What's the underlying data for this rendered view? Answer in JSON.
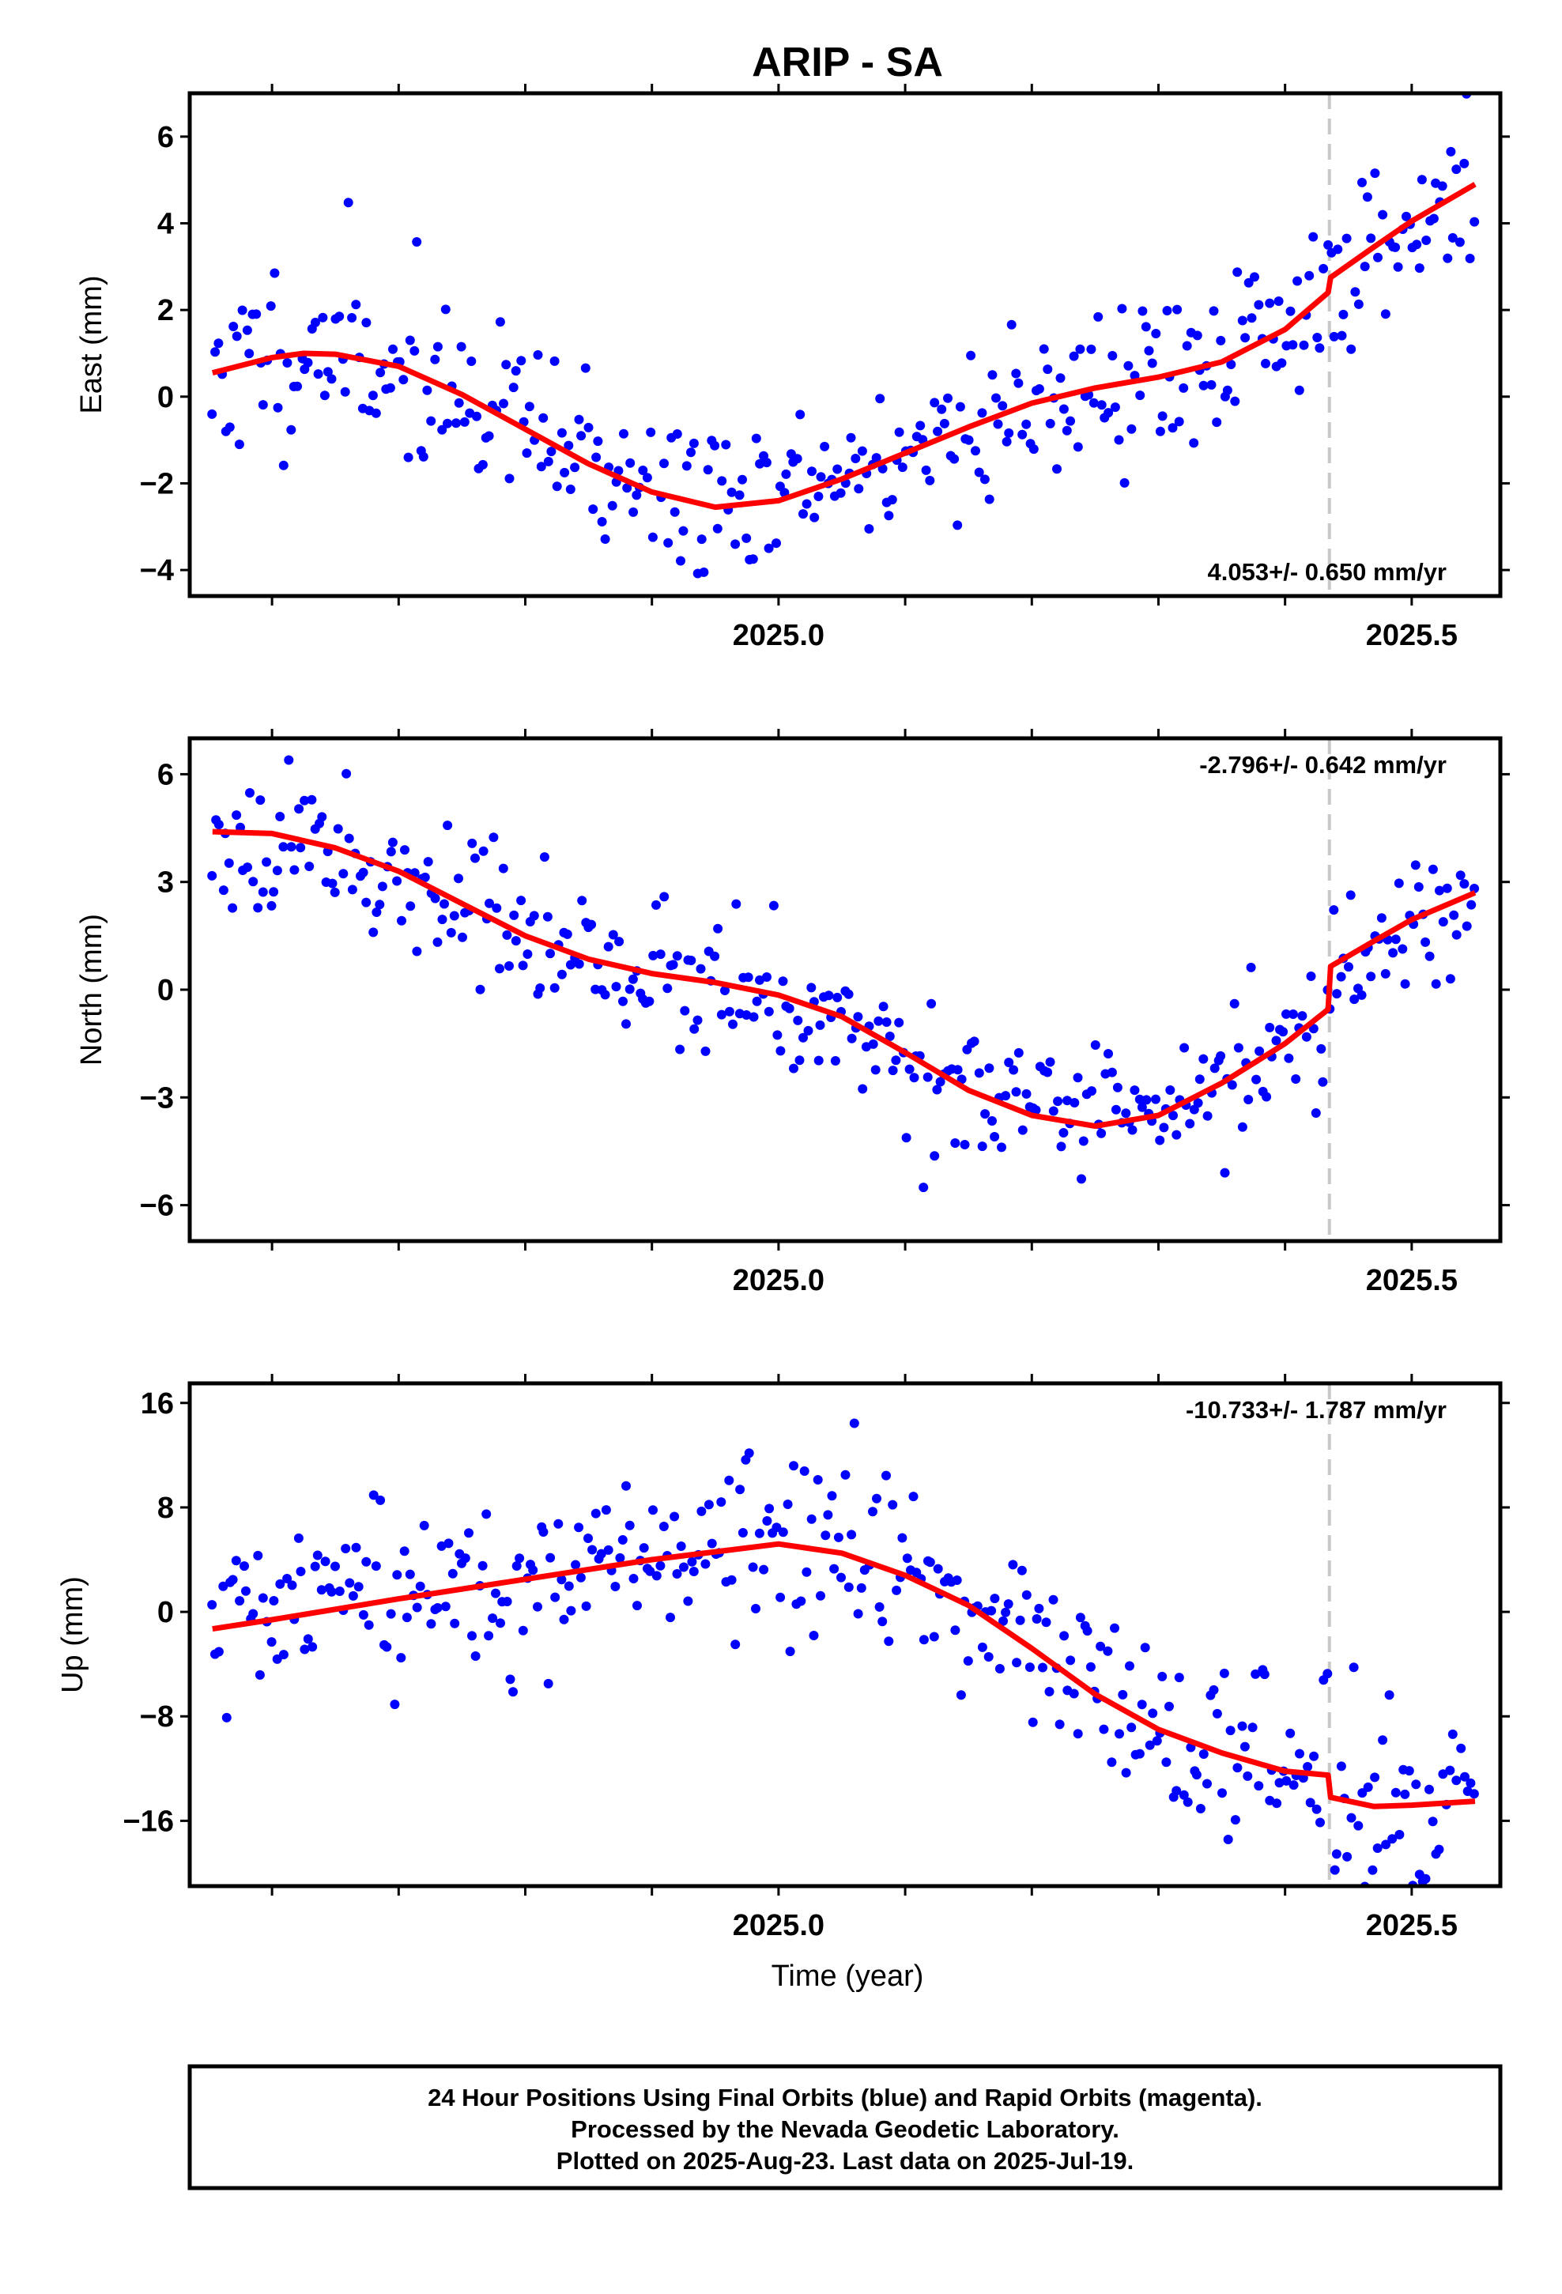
{
  "title": "ARIP - SA",
  "xlabel": "Time (year)",
  "footer": {
    "line1": "24 Hour Positions Using Final Orbits (blue) and Rapid Orbits (magenta).",
    "line2": "Processed by the Nevada Geodetic Laboratory.",
    "line3": "Plotted on 2025-Aug-23. Last data on 2025-Jul-19."
  },
  "colors": {
    "points": "#0000ff",
    "fit": "#ff0000",
    "event_line": "#c8c8c8"
  },
  "chart_data": [
    {
      "type": "scatter",
      "ylabel": "East (mm)",
      "rate": "4.053+/- 0.650 mm/yr",
      "xlim": [
        2024.535,
        2025.57
      ],
      "ylim": [
        -4.6,
        7.0
      ],
      "yticks": [
        -4,
        -2,
        0,
        2,
        4,
        6
      ],
      "xticks_labeled": [
        2025.0,
        2025.5
      ],
      "xticks_minor": [
        2024.6,
        2024.7,
        2024.8,
        2024.9,
        2025.1,
        2025.2,
        2025.3,
        2025.4
      ],
      "event_x": 2025.435,
      "fit": [
        [
          2024.553,
          0.55
        ],
        [
          2024.6,
          0.9
        ],
        [
          2024.625,
          1.0
        ],
        [
          2024.65,
          0.98
        ],
        [
          2024.7,
          0.7
        ],
        [
          2024.75,
          0.05
        ],
        [
          2024.8,
          -0.75
        ],
        [
          2024.85,
          -1.55
        ],
        [
          2024.9,
          -2.2
        ],
        [
          2024.95,
          -2.55
        ],
        [
          2025.0,
          -2.4
        ],
        [
          2025.05,
          -1.9
        ],
        [
          2025.1,
          -1.3
        ],
        [
          2025.15,
          -0.7
        ],
        [
          2025.2,
          -0.15
        ],
        [
          2025.25,
          0.2
        ],
        [
          2025.3,
          0.45
        ],
        [
          2025.35,
          0.8
        ],
        [
          2025.4,
          1.55
        ],
        [
          2025.434,
          2.4
        ],
        [
          2025.436,
          2.75
        ],
        [
          2025.47,
          3.45
        ],
        [
          2025.5,
          4.05
        ],
        [
          2025.55,
          4.9
        ]
      ],
      "points": {
        "seed": 11,
        "noise_sd": 1.0,
        "start": 2024.553,
        "end": 2025.55,
        "step": 0.0027
      }
    },
    {
      "type": "scatter",
      "ylabel": "North (mm)",
      "rate": "-2.796+/- 0.642 mm/yr",
      "xlim": [
        2024.535,
        2025.57
      ],
      "ylim": [
        -7.0,
        7.0
      ],
      "yticks": [
        -6,
        -3,
        0,
        3,
        6
      ],
      "xticks_labeled": [
        2025.0,
        2025.5
      ],
      "xticks_minor": [
        2024.6,
        2024.7,
        2024.8,
        2024.9,
        2025.1,
        2025.2,
        2025.3,
        2025.4
      ],
      "event_x": 2025.435,
      "fit": [
        [
          2024.553,
          4.4
        ],
        [
          2024.6,
          4.35
        ],
        [
          2024.65,
          3.95
        ],
        [
          2024.7,
          3.3
        ],
        [
          2024.75,
          2.4
        ],
        [
          2024.8,
          1.5
        ],
        [
          2024.85,
          0.85
        ],
        [
          2024.9,
          0.45
        ],
        [
          2024.95,
          0.2
        ],
        [
          2025.0,
          -0.15
        ],
        [
          2025.05,
          -0.75
        ],
        [
          2025.1,
          -1.75
        ],
        [
          2025.15,
          -2.8
        ],
        [
          2025.2,
          -3.5
        ],
        [
          2025.25,
          -3.8
        ],
        [
          2025.3,
          -3.5
        ],
        [
          2025.35,
          -2.6
        ],
        [
          2025.4,
          -1.5
        ],
        [
          2025.434,
          -0.55
        ],
        [
          2025.436,
          0.65
        ],
        [
          2025.47,
          1.35
        ],
        [
          2025.5,
          1.95
        ],
        [
          2025.55,
          2.7
        ]
      ],
      "points": {
        "seed": 23,
        "noise_sd": 0.95,
        "start": 2024.553,
        "end": 2025.55,
        "step": 0.0027
      }
    },
    {
      "type": "scatter",
      "ylabel": "Up (mm)",
      "rate": "-10.733+/- 1.787 mm/yr",
      "xlim": [
        2024.535,
        2025.57
      ],
      "ylim": [
        -21.0,
        17.5
      ],
      "yticks": [
        -16,
        -8,
        0,
        8,
        16
      ],
      "xticks_labeled": [
        2025.0,
        2025.5
      ],
      "xticks_minor": [
        2024.6,
        2024.7,
        2024.8,
        2024.9,
        2025.1,
        2025.2,
        2025.3,
        2025.4
      ],
      "event_x": 2025.435,
      "fit": [
        [
          2024.553,
          -1.3
        ],
        [
          2024.6,
          -0.6
        ],
        [
          2024.7,
          1.0
        ],
        [
          2024.8,
          2.5
        ],
        [
          2024.9,
          4.0
        ],
        [
          2025.0,
          5.2
        ],
        [
          2025.05,
          4.5
        ],
        [
          2025.1,
          2.8
        ],
        [
          2025.15,
          0.5
        ],
        [
          2025.2,
          -2.8
        ],
        [
          2025.25,
          -6.3
        ],
        [
          2025.3,
          -9.0
        ],
        [
          2025.35,
          -10.8
        ],
        [
          2025.4,
          -12.2
        ],
        [
          2025.434,
          -12.5
        ],
        [
          2025.436,
          -14.2
        ],
        [
          2025.47,
          -14.9
        ],
        [
          2025.5,
          -14.8
        ],
        [
          2025.55,
          -14.5
        ]
      ],
      "points": {
        "seed": 37,
        "noise_sd": 3.4,
        "start": 2024.553,
        "end": 2025.55,
        "step": 0.0027
      }
    }
  ]
}
